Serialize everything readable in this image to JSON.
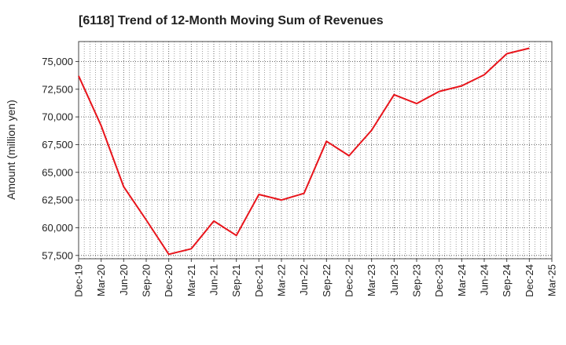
{
  "chart_data": {
    "type": "line",
    "title": "[6118]  Trend of 12-Month Moving Sum of Revenues",
    "xlabel": "",
    "ylabel": "Amount (million yen)",
    "ylim": [
      57200,
      76800
    ],
    "yticks": [
      57500,
      60000,
      62500,
      65000,
      67500,
      70000,
      72500,
      75000
    ],
    "ytick_labels": [
      "57,500",
      "60,000",
      "62,500",
      "65,000",
      "67,500",
      "70,000",
      "72,500",
      "75,000"
    ],
    "categories": [
      "Dec-19",
      "Mar-20",
      "Jun-20",
      "Sep-20",
      "Dec-20",
      "Mar-21",
      "Jun-21",
      "Sep-21",
      "Dec-21",
      "Mar-22",
      "Jun-22",
      "Sep-22",
      "Dec-22",
      "Mar-23",
      "Jun-23",
      "Sep-23",
      "Dec-23",
      "Mar-24",
      "Jun-24",
      "Sep-24",
      "Dec-24",
      "Mar-25"
    ],
    "series": [
      {
        "color": "#e8141b",
        "values": [
          73700,
          69200,
          63700,
          60700,
          57600,
          58100,
          60600,
          59300,
          63000,
          62500,
          63100,
          67800,
          66500,
          68800,
          72000,
          71200,
          72300,
          72800,
          73800,
          75700,
          76200,
          null
        ]
      }
    ],
    "grid": true,
    "legend": "none"
  }
}
